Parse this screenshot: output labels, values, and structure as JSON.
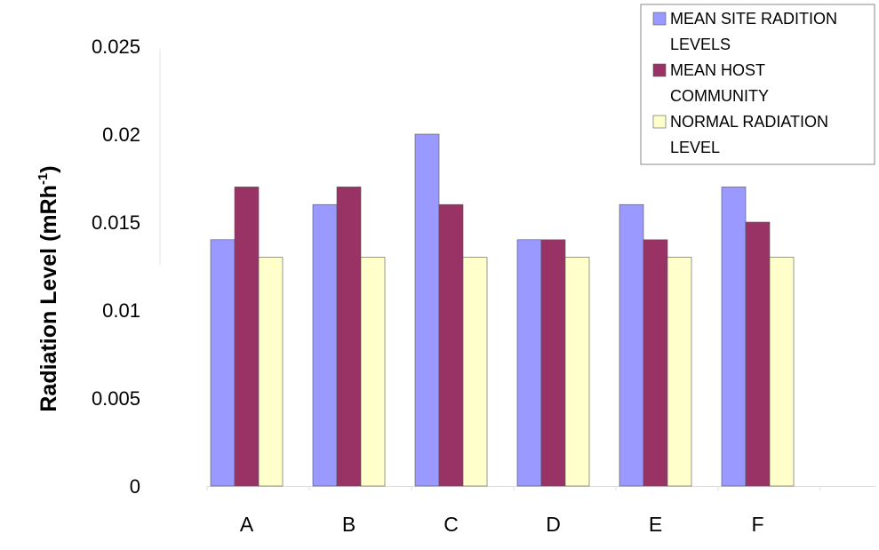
{
  "chart_data": {
    "type": "bar",
    "categories": [
      "A",
      "B",
      "C",
      "D",
      "E",
      "F"
    ],
    "series": [
      {
        "name": "MEAN SITE RADITION LEVELS",
        "color": "#9999ff",
        "values": [
          0.014,
          0.016,
          0.02,
          0.014,
          0.016,
          0.017
        ]
      },
      {
        "name": "MEAN HOST COMMUNITY",
        "color": "#993366",
        "values": [
          0.017,
          0.017,
          0.016,
          0.014,
          0.014,
          0.015
        ]
      },
      {
        "name": "NORMAL RADIATION LEVEL",
        "color": "#ffffcc",
        "values": [
          0.013,
          0.013,
          0.013,
          0.013,
          0.013,
          0.013
        ]
      }
    ],
    "ylabel": "Radiation Level",
    "ylabel_unit": {
      "prefix": "(mRh",
      "superscript": "-1",
      "suffix": ")"
    },
    "yticks": [
      "0",
      "0.005",
      "0.01",
      "0.015",
      "0.02",
      "0.025"
    ],
    "ylim": [
      0,
      0.025
    ],
    "legend": {
      "position": "top-right",
      "lines": [
        {
          "text": "MEAN SITE RADITION",
          "series": 0
        },
        {
          "text": "LEVELS"
        },
        {
          "text": "MEAN HOST",
          "series": 1
        },
        {
          "text": "COMMUNITY"
        },
        {
          "text": "NORMAL RADIATION",
          "series": 2
        },
        {
          "text": "LEVEL"
        }
      ]
    },
    "grid": false
  }
}
